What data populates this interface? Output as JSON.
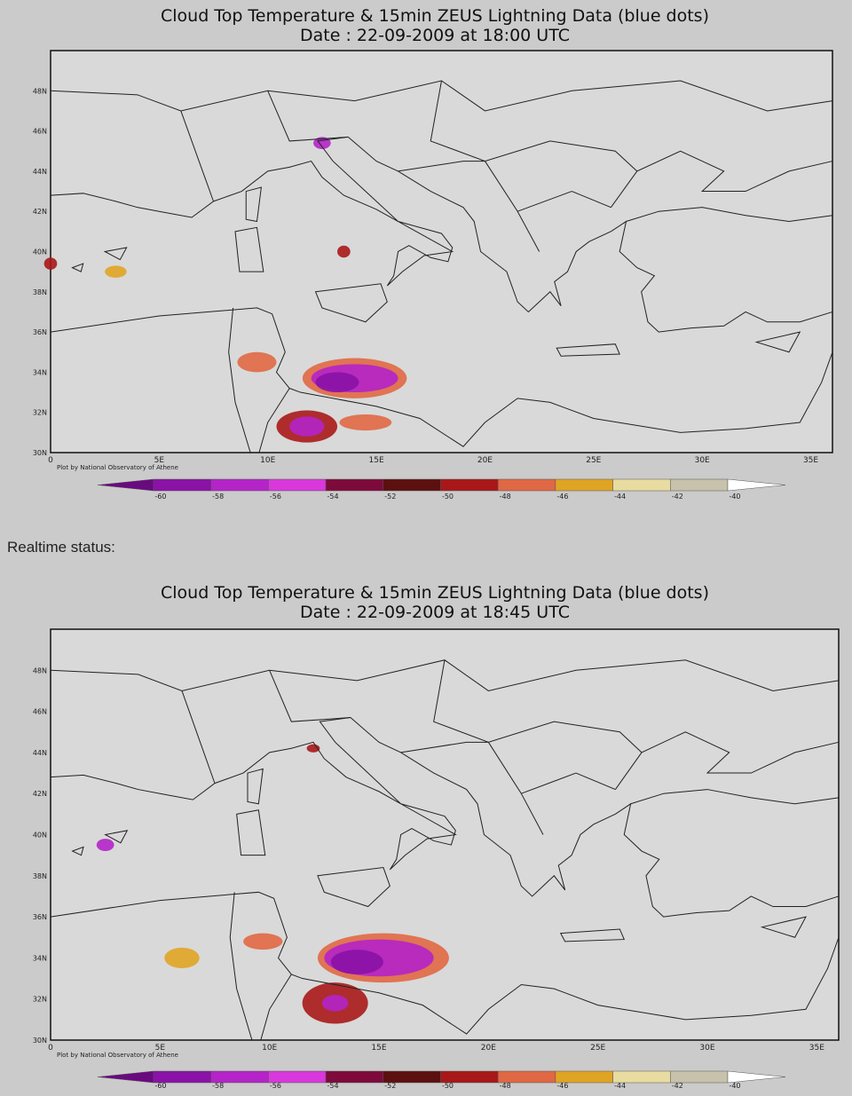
{
  "status_label": "Realtime status:",
  "maps": [
    {
      "title": "Cloud Top Temperature & 15min ZEUS Lightning Data (blue dots)",
      "date": "Date : 22-09-2009 at 18:00 UTC",
      "lat_labels": [
        "48N",
        "46N",
        "44N",
        "42N",
        "40N",
        "38N",
        "36N",
        "34N",
        "32N",
        "30N"
      ],
      "lon_labels": [
        "0",
        "5E",
        "10E",
        "15E",
        "20E",
        "25E",
        "30E",
        "35E"
      ],
      "credit": "Plot by National Observatory of Athene",
      "colorbar": {
        "labels": [
          "-60",
          "-58",
          "-56",
          "-54",
          "-52",
          "-50",
          "-48",
          "-46",
          "-44",
          "-42",
          "-40"
        ],
        "colors": [
          "#6a0a80",
          "#8a12a6",
          "#b424c8",
          "#d838dc",
          "#7e0a3c",
          "#5c1010",
          "#a81818",
          "#e06844",
          "#e0a424",
          "#e8dca0",
          "#c8c2ac",
          "#ffffff"
        ]
      }
    },
    {
      "title": "Cloud Top Temperature & 15min ZEUS Lightning Data (blue dots)",
      "date": "Date : 22-09-2009 at 18:45 UTC",
      "lat_labels": [
        "48N",
        "46N",
        "44N",
        "42N",
        "40N",
        "38N",
        "36N",
        "34N",
        "32N",
        "30N"
      ],
      "lon_labels": [
        "0",
        "5E",
        "10E",
        "15E",
        "20E",
        "25E",
        "30E",
        "35E"
      ],
      "credit": "Plot by National Observatory of Athene",
      "colorbar": {
        "labels": [
          "-60",
          "-58",
          "-56",
          "-54",
          "-52",
          "-50",
          "-48",
          "-46",
          "-44",
          "-42",
          "-40"
        ],
        "colors": [
          "#6a0a80",
          "#8a12a6",
          "#b424c8",
          "#d838dc",
          "#7e0a3c",
          "#5c1010",
          "#a81818",
          "#e06844",
          "#e0a424",
          "#e8dca0",
          "#c8c2ac",
          "#ffffff"
        ]
      }
    }
  ]
}
